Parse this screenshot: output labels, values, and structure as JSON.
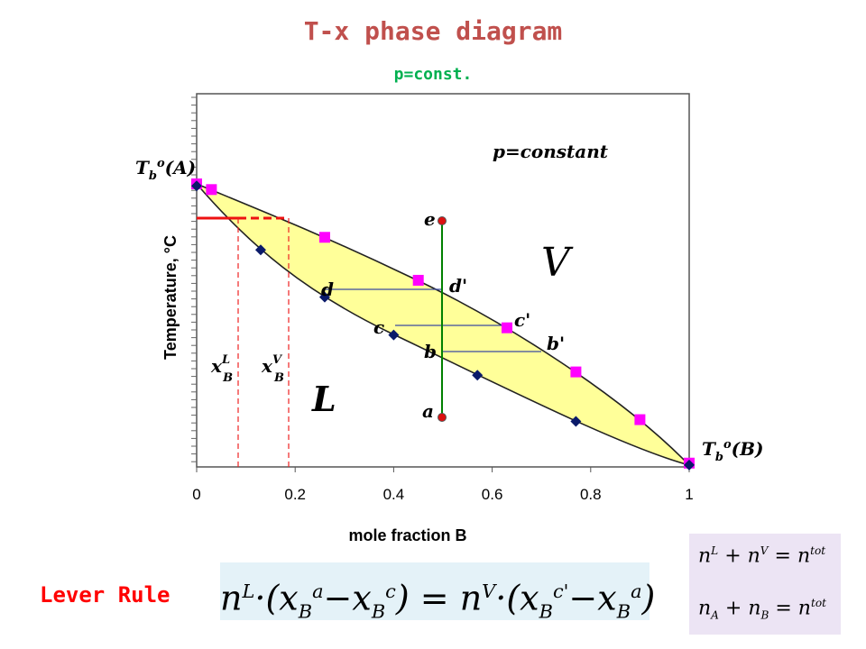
{
  "header": {
    "title": "T-x phase diagram",
    "subtitle": "p=const."
  },
  "chart_data": {
    "type": "phase-diagram",
    "xlabel": "mole fraction B",
    "ylabel": "Temperature, °C",
    "xlim": [
      0,
      1
    ],
    "x_ticks": [
      "0",
      "0.2",
      "0.4",
      "0.6",
      "0.8",
      "1"
    ],
    "annotation": "p=constant",
    "region_labels": {
      "vapor": "V",
      "liquid": "L"
    },
    "endpoint_labels": {
      "left": "Tb°(A)",
      "right": "Tb°(B)"
    },
    "vapor_composition_points_x": [
      0.0,
      0.03,
      0.26,
      0.45,
      0.63,
      0.77,
      0.9,
      1.0
    ],
    "liquid_composition_points_x": [
      0.0,
      0.13,
      0.26,
      0.4,
      0.57,
      0.77,
      1.0
    ],
    "vertical_line": {
      "x": 0.5,
      "points": [
        "e",
        "d'",
        "c'",
        "b'",
        "a"
      ]
    },
    "tie_line_labels": [
      {
        "liquid": "d",
        "vapor": "d'"
      },
      {
        "liquid": "c",
        "vapor": "c'"
      },
      {
        "liquid": "b",
        "vapor": "b'"
      }
    ],
    "composition_markers": [
      {
        "label": "x_B^L",
        "x": 0.085
      },
      {
        "label": "x_B^V",
        "x": 0.19
      }
    ],
    "colors": {
      "two_phase_region": "#ffff99",
      "vapor_marker": "#ff00ff",
      "liquid_marker": "#0a1a6a",
      "vertical_line": "#008000",
      "point": "#dd1111",
      "tie_line": "#3a4aa0",
      "dashed": "#dd2222"
    }
  },
  "footer": {
    "lever_label": "Lever Rule",
    "equation_main": "n^L·(x_B^a − x_B^c) = n^V·(x_B^c' − x_B^a)",
    "equation_1": "n^L + n^V = n^tot",
    "equation_2": "n_A + n_B = n^tot"
  }
}
